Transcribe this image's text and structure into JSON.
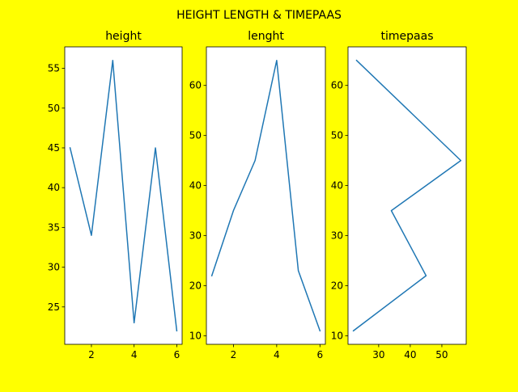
{
  "figure": {
    "background": "#ffff00",
    "suptitle": "HEIGHT LENGTH & TIMEPAAS"
  },
  "chart_data": [
    {
      "type": "line",
      "title": "height",
      "color": "#1f77b4",
      "x": [
        1,
        2,
        3,
        4,
        5,
        6
      ],
      "y": [
        45,
        34,
        56,
        23,
        45,
        22
      ],
      "xlim": [
        0.75,
        6.25
      ],
      "ylim": [
        20.3,
        57.7
      ],
      "xticks": [
        2,
        4,
        6
      ],
      "yticks": [
        25,
        30,
        35,
        40,
        45,
        50,
        55
      ],
      "xlabel": "",
      "ylabel": ""
    },
    {
      "type": "line",
      "title": "lenght",
      "color": "#1f77b4",
      "x": [
        1,
        2,
        3,
        4,
        5,
        6
      ],
      "y": [
        22,
        35,
        45,
        65,
        23,
        11
      ],
      "xlim": [
        0.75,
        6.25
      ],
      "ylim": [
        8.3,
        67.7
      ],
      "xticks": [
        2,
        4,
        6
      ],
      "yticks": [
        10,
        20,
        30,
        40,
        50,
        60
      ],
      "xlabel": "",
      "ylabel": ""
    },
    {
      "type": "line",
      "title": "timepaas",
      "color": "#1f77b4",
      "x": [
        22,
        45,
        34,
        56,
        23
      ],
      "y": [
        11,
        22,
        35,
        45,
        65
      ],
      "xlim": [
        20.3,
        57.7
      ],
      "ylim": [
        8.3,
        67.7
      ],
      "xticks": [
        30,
        40,
        50
      ],
      "yticks": [
        10,
        20,
        30,
        40,
        50,
        60
      ],
      "xlabel": "",
      "ylabel": ""
    }
  ]
}
